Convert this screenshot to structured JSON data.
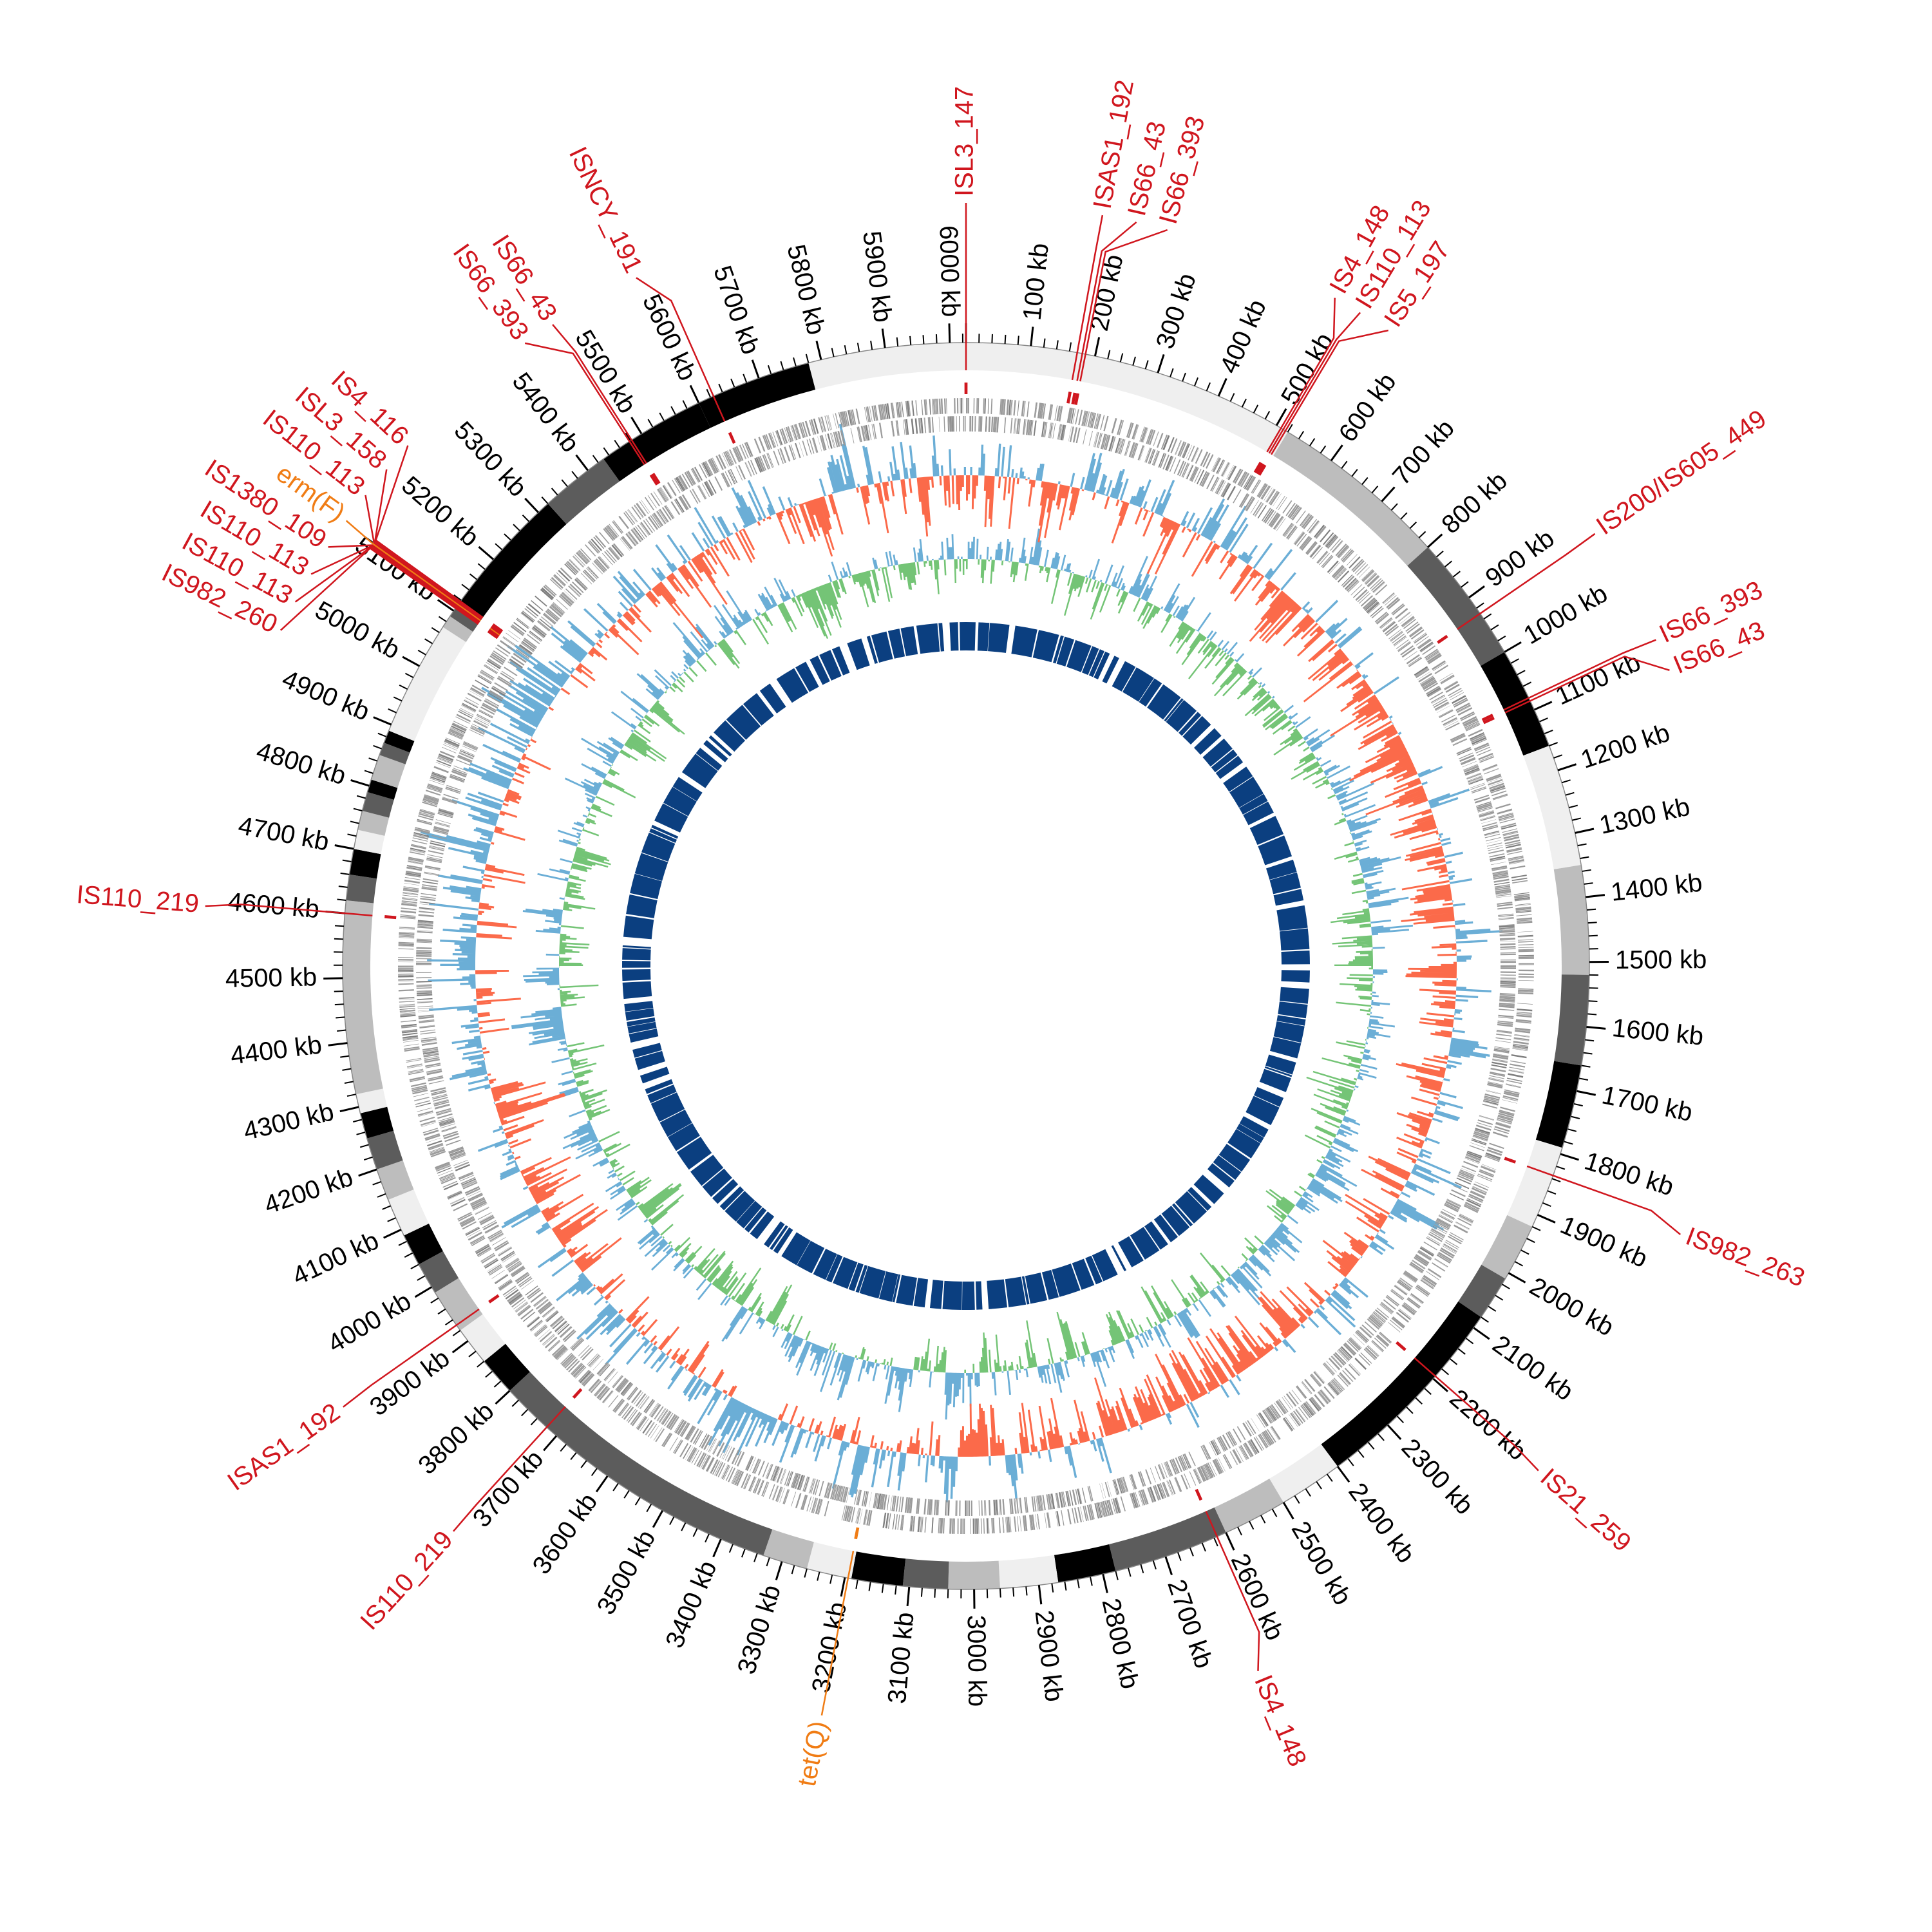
{
  "chart_data": {
    "type": "circos",
    "title": "",
    "genome_length_kb": 6025,
    "unit": "kb",
    "tick_labels": [
      "100 kb",
      "200 kb",
      "300 kb",
      "400 kb",
      "500 kb",
      "600 kb",
      "700 kb",
      "800 kb",
      "900 kb",
      "1000 kb",
      "1100 kb",
      "1200 kb",
      "1300 kb",
      "1400 kb",
      "1500 kb",
      "1600 kb",
      "1700 kb",
      "1800 kb",
      "1900 kb",
      "2000 kb",
      "2100 kb",
      "2200 kb",
      "2300 kb",
      "2400 kb",
      "2500 kb",
      "2600 kb",
      "2700 kb",
      "2800 kb",
      "2900 kb",
      "3000 kb",
      "3100 kb",
      "3200 kb",
      "3300 kb",
      "3400 kb",
      "3500 kb",
      "3600 kb",
      "3700 kb",
      "3800 kb",
      "3900 kb",
      "4000 kb",
      "4100 kb",
      "4200 kb",
      "4300 kb",
      "4400 kb",
      "4500 kb",
      "4600 kb",
      "4700 kb",
      "4800 kb",
      "4900 kb",
      "5000 kb",
      "5100 kb",
      "5200 kb",
      "5300 kb",
      "5400 kb",
      "5500 kb",
      "5600 kb",
      "5700 kb",
      "5800 kb",
      "5900 kb",
      "6000 kb"
    ],
    "tick_step_kb": 100,
    "colors": {
      "is_element": "#d0161e",
      "resistance_gene": "#f07c14",
      "genes": "#9a9a9a",
      "skew_positive": "#6baed6",
      "skew_negative": "#fb6a4a",
      "gc_positive": "#6baed6",
      "gc_negative": "#74c476",
      "inner_band": "#0b3f80"
    },
    "ideogram_bands": [
      [
        0,
        520,
        "#efefef"
      ],
      [
        520,
        800,
        "#bdbdbd"
      ],
      [
        800,
        1000,
        "#5c5c5c"
      ],
      [
        1000,
        1160,
        "#000000"
      ],
      [
        1160,
        1350,
        "#efefef"
      ],
      [
        1350,
        1520,
        "#bdbdbd"
      ],
      [
        1520,
        1660,
        "#5c5c5c"
      ],
      [
        1660,
        1790,
        "#000000"
      ],
      [
        1790,
        1920,
        "#efefef"
      ],
      [
        1920,
        2010,
        "#bdbdbd"
      ],
      [
        2010,
        2080,
        "#5c5c5c"
      ],
      [
        2080,
        2400,
        "#000000"
      ],
      [
        2400,
        2500,
        "#efefef"
      ],
      [
        2500,
        2600,
        "#bdbdbd"
      ],
      [
        2600,
        2780,
        "#5c5c5c"
      ],
      [
        2780,
        2870,
        "#000000"
      ],
      [
        2870,
        2960,
        "#efefef"
      ],
      [
        2960,
        3040,
        "#bdbdbd"
      ],
      [
        3040,
        3110,
        "#5c5c5c"
      ],
      [
        3110,
        3190,
        "#000000"
      ],
      [
        3190,
        3260,
        "#efefef"
      ],
      [
        3260,
        3330,
        "#bdbdbd"
      ],
      [
        3330,
        3800,
        "#5c5c5c"
      ],
      [
        3800,
        3860,
        "#000000"
      ],
      [
        3860,
        3920,
        "#efefef"
      ],
      [
        3920,
        3990,
        "#bdbdbd"
      ],
      [
        3990,
        4040,
        "#5c5c5c"
      ],
      [
        4040,
        4090,
        "#000000"
      ],
      [
        4090,
        4150,
        "#efefef"
      ],
      [
        4150,
        4200,
        "#bdbdbd"
      ],
      [
        4200,
        4250,
        "#5c5c5c"
      ],
      [
        4250,
        4290,
        "#000000"
      ],
      [
        4290,
        4320,
        "#efefef"
      ],
      [
        4320,
        4620,
        "#bdbdbd"
      ],
      [
        4620,
        4660,
        "#5c5c5c"
      ],
      [
        4660,
        4700,
        "#000000"
      ],
      [
        4700,
        4730,
        "#efefef"
      ],
      [
        4730,
        4760,
        "#bdbdbd"
      ],
      [
        4760,
        4790,
        "#5c5c5c"
      ],
      [
        4790,
        4810,
        "#000000"
      ],
      [
        4810,
        4850,
        "#bdbdbd"
      ],
      [
        4850,
        4870,
        "#5c5c5c"
      ],
      [
        4870,
        4890,
        "#000000"
      ],
      [
        4890,
        5070,
        "#efefef"
      ],
      [
        5070,
        5090,
        "#bdbdbd"
      ],
      [
        5090,
        5110,
        "#5c5c5c"
      ],
      [
        5110,
        5320,
        "#000000"
      ],
      [
        5320,
        5430,
        "#5c5c5c"
      ],
      [
        5430,
        5600,
        "#000000"
      ],
      [
        5600,
        5780,
        "#000000"
      ],
      [
        5780,
        6025,
        "#efefef"
      ]
    ],
    "features": [
      {
        "label": "ISL3_147",
        "kb": 0,
        "type": "IS"
      },
      {
        "label": "ISAS1_192",
        "kb": 172,
        "type": "IS"
      },
      {
        "label": "IS66_43",
        "kb": 180,
        "type": "IS"
      },
      {
        "label": "IS66_393",
        "kb": 185,
        "type": "IS"
      },
      {
        "label": "IS4_148",
        "kb": 508,
        "type": "IS"
      },
      {
        "label": "IS110_113",
        "kb": 512,
        "type": "IS"
      },
      {
        "label": "IS5_197",
        "kb": 516,
        "type": "IS"
      },
      {
        "label": "IS200/IS605_449",
        "kb": 930,
        "type": "IS"
      },
      {
        "label": "IS66_393",
        "kb": 1080,
        "type": "IS"
      },
      {
        "label": "IS66_43",
        "kb": 1085,
        "type": "IS"
      },
      {
        "label": "IS982_263",
        "kb": 1835,
        "type": "IS"
      },
      {
        "label": "IS21_259",
        "kb": 2195,
        "type": "IS"
      },
      {
        "label": "IS4_148",
        "kb": 2615,
        "type": "IS"
      },
      {
        "label": "tet(Q)",
        "kb": 3195,
        "type": "ARG"
      },
      {
        "label": "IS110_219",
        "kb": 3720,
        "type": "IS"
      },
      {
        "label": "ISAS1_192",
        "kb": 3930,
        "type": "IS"
      },
      {
        "label": "IS110_219",
        "kb": 4600,
        "type": "IS"
      },
      {
        "label": "IS982_260",
        "kb": 5105,
        "type": "IS"
      },
      {
        "label": "IS110_113",
        "kb": 5107,
        "type": "IS"
      },
      {
        "label": "IS110_113",
        "kb": 5109,
        "type": "IS"
      },
      {
        "label": "IS1380_109",
        "kb": 5110,
        "type": "IS"
      },
      {
        "label": "erm(F)",
        "kb": 5112,
        "type": "ARG"
      },
      {
        "label": "IS110_113",
        "kb": 5114,
        "type": "IS"
      },
      {
        "label": "ISL3_158",
        "kb": 5116,
        "type": "IS"
      },
      {
        "label": "IS4_116",
        "kb": 5118,
        "type": "IS"
      },
      {
        "label": "IS66_393",
        "kb": 5478,
        "type": "IS"
      },
      {
        "label": "IS66_43",
        "kb": 5482,
        "type": "IS"
      },
      {
        "label": "ISNCY_191",
        "kb": 5625,
        "type": "IS"
      }
    ]
  }
}
